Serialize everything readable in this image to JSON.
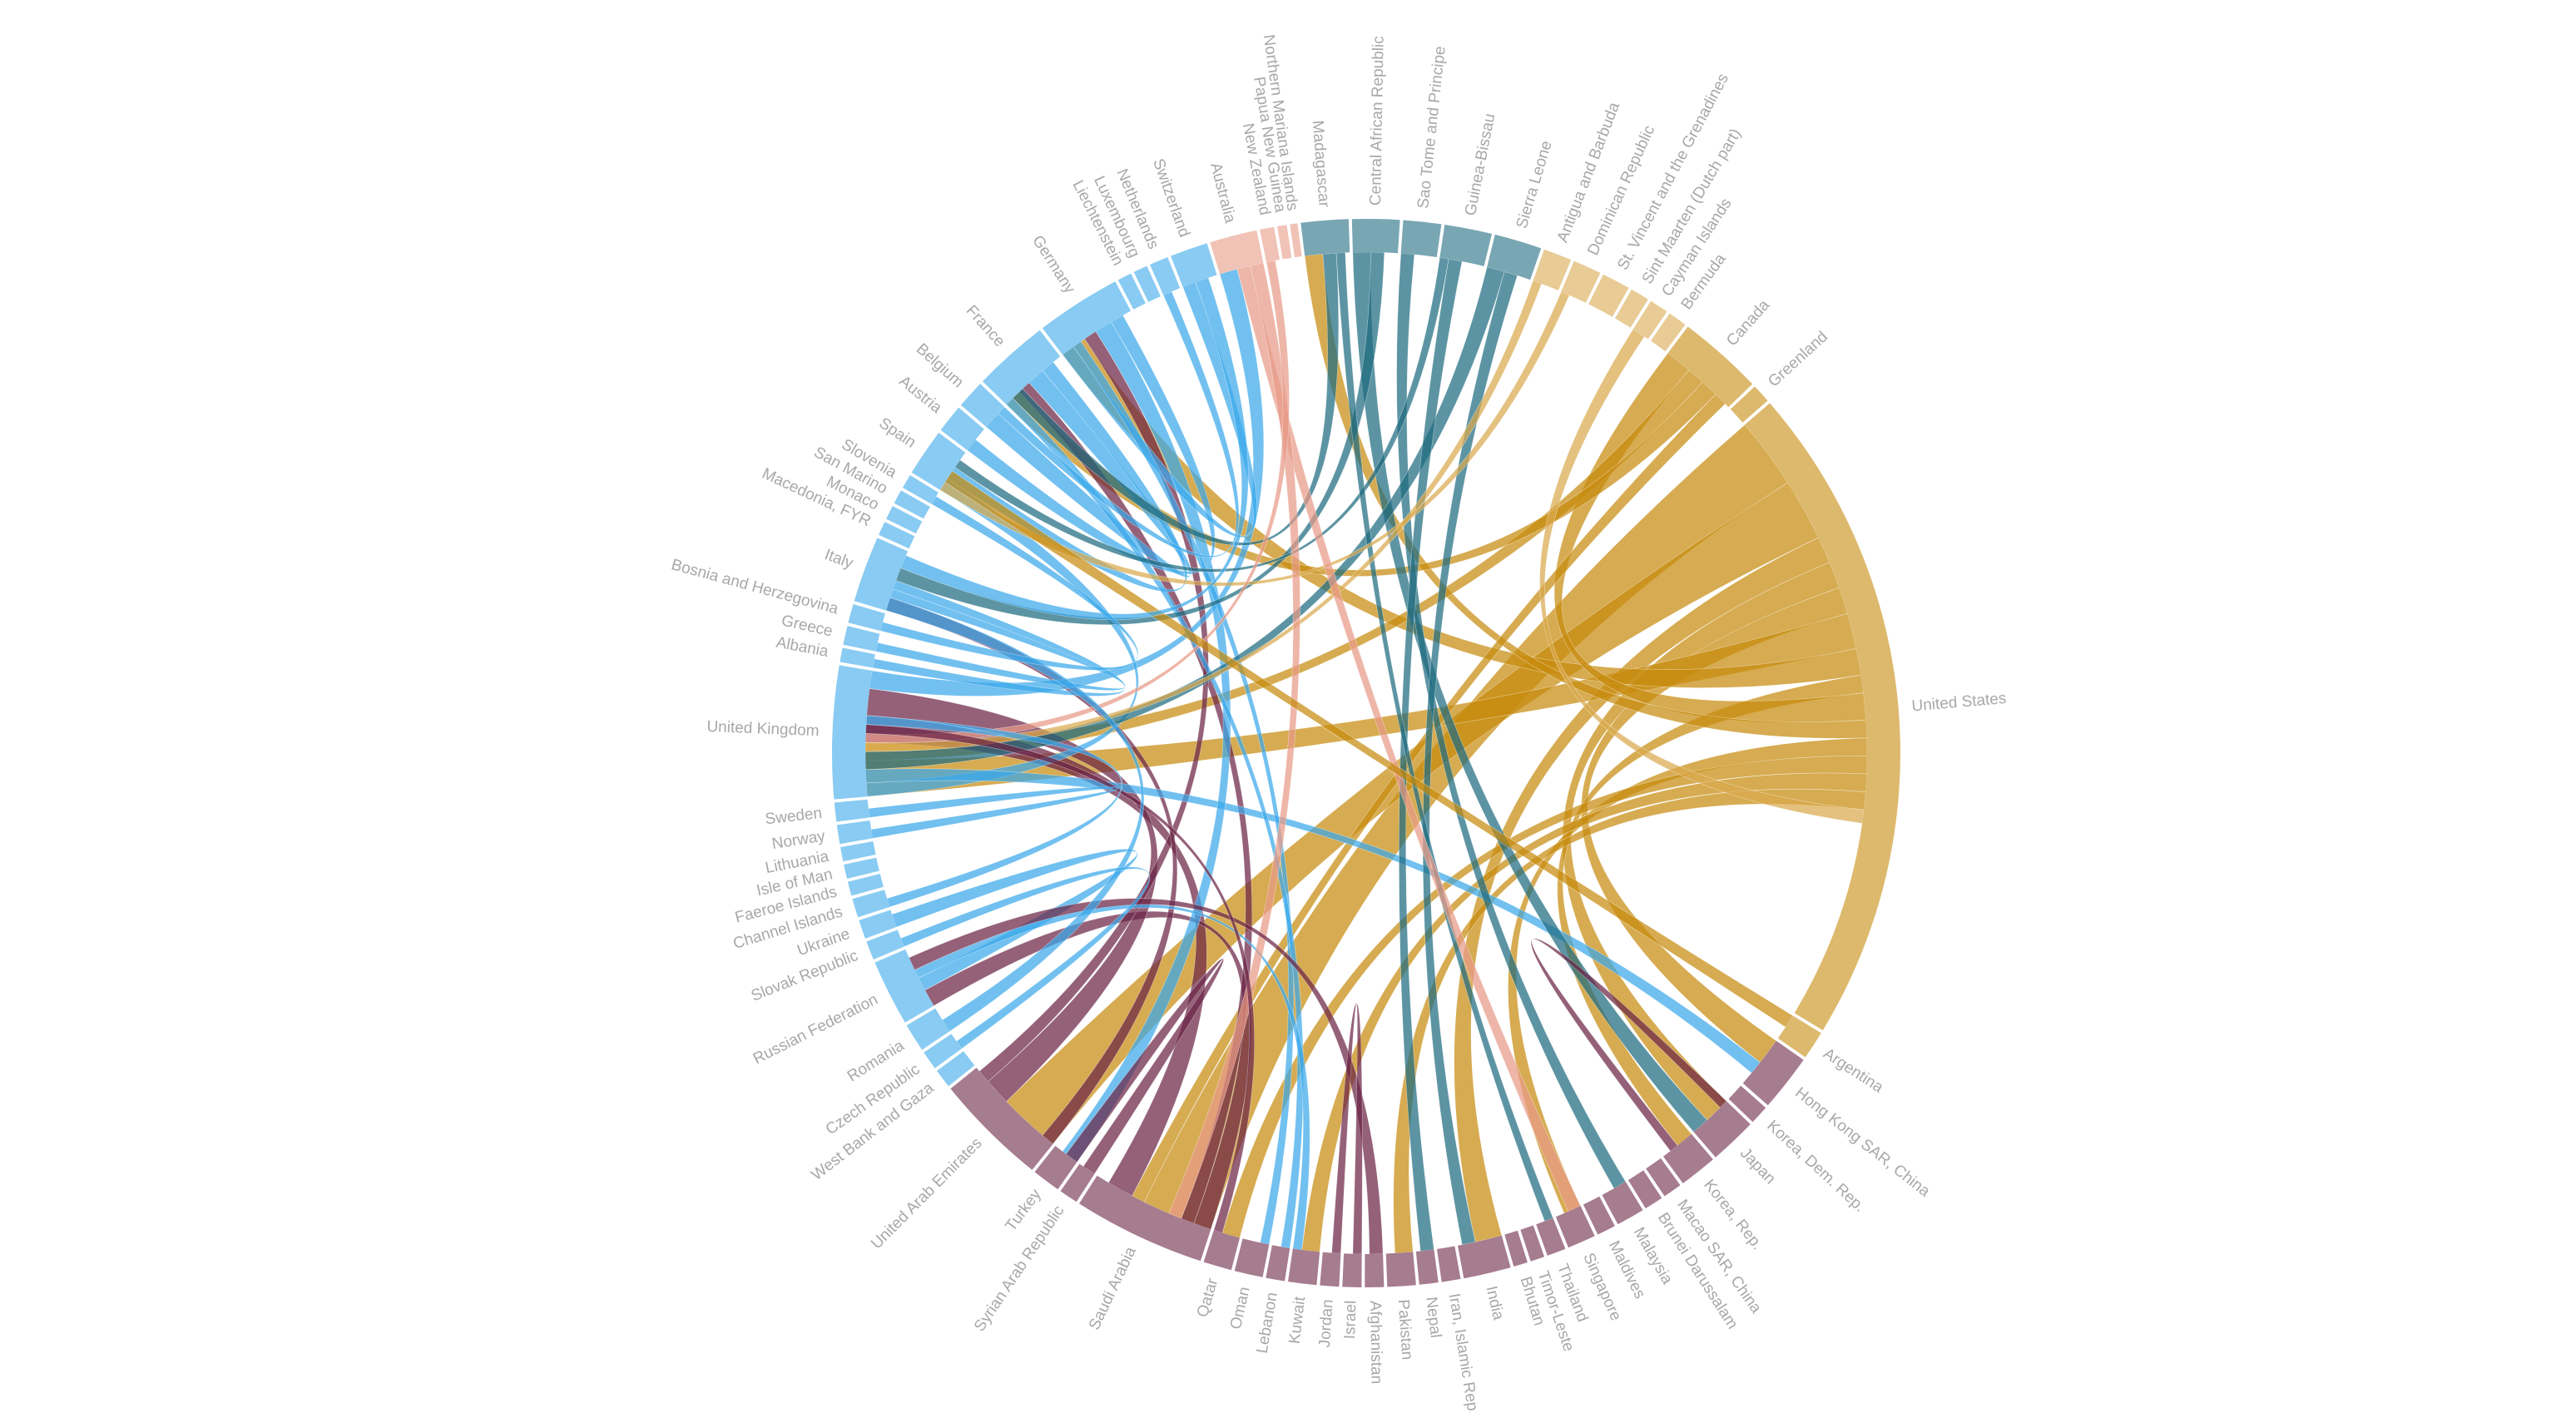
{
  "chart_data": {
    "type": "chord",
    "nodes": [
      {
        "name": "Australia",
        "value": 5,
        "color": "#e89a86"
      },
      {
        "name": "New Zealand",
        "value": 1.5,
        "color": "#e89a86"
      },
      {
        "name": "Papua New Guinea",
        "value": 1,
        "color": "#e89a86"
      },
      {
        "name": "Northern Mariana Islands",
        "value": 0.8,
        "color": "#e89a86"
      },
      {
        "name": "Madagascar",
        "value": 5,
        "color": "#1f6b80"
      },
      {
        "name": "Central African Republic",
        "value": 5,
        "color": "#1f6b80"
      },
      {
        "name": "Sao Tome and Principe",
        "value": 4,
        "color": "#1f6b80"
      },
      {
        "name": "Guinea-Bissau",
        "value": 5,
        "color": "#1f6b80"
      },
      {
        "name": "Sierra Leone",
        "value": 5,
        "color": "#1f6b80"
      },
      {
        "name": "Antigua and Barbuda",
        "value": 3,
        "color": "#d9a94e"
      },
      {
        "name": "Dominican Republic",
        "value": 3,
        "color": "#d9a94e"
      },
      {
        "name": "St. Vincent and the Grenadines",
        "value": 3,
        "color": "#d9a94e"
      },
      {
        "name": "Sint Maarten (Dutch part)",
        "value": 2,
        "color": "#d9a94e"
      },
      {
        "name": "Cayman Islands",
        "value": 2,
        "color": "#d9a94e"
      },
      {
        "name": "Bermuda",
        "value": 2,
        "color": "#d9a94e"
      },
      {
        "name": "Canada",
        "value": 9,
        "color": "#c68a0e"
      },
      {
        "name": "Greenland",
        "value": 2,
        "color": "#c68a0e"
      },
      {
        "name": "United States",
        "value": 70,
        "color": "#c68a0e"
      },
      {
        "name": "Argentina",
        "value": 3,
        "color": "#c68a0e"
      },
      {
        "name": "Hong Kong SAR, China",
        "value": 6,
        "color": "#6b2445"
      },
      {
        "name": "Korea, Dem. Rep.",
        "value": 2,
        "color": "#6b2445"
      },
      {
        "name": "Japan",
        "value": 5,
        "color": "#6b2445"
      },
      {
        "name": "Korea, Rep.",
        "value": 4,
        "color": "#6b2445"
      },
      {
        "name": "Macao SAR, China",
        "value": 2,
        "color": "#6b2445"
      },
      {
        "name": "Brunei Darussalam",
        "value": 2,
        "color": "#6b2445"
      },
      {
        "name": "Malaysia",
        "value": 3,
        "color": "#6b2445"
      },
      {
        "name": "Maldives",
        "value": 2,
        "color": "#6b2445"
      },
      {
        "name": "Singapore",
        "value": 3,
        "color": "#6b2445"
      },
      {
        "name": "Thailand",
        "value": 2,
        "color": "#6b2445"
      },
      {
        "name": "Timor-Leste",
        "value": 1.5,
        "color": "#6b2445"
      },
      {
        "name": "Bhutan",
        "value": 1.5,
        "color": "#6b2445"
      },
      {
        "name": "India",
        "value": 5,
        "color": "#6b2445"
      },
      {
        "name": "Iran, Islamic Rep.",
        "value": 2,
        "color": "#6b2445"
      },
      {
        "name": "Nepal",
        "value": 2,
        "color": "#6b2445"
      },
      {
        "name": "Pakistan",
        "value": 3,
        "color": "#6b2445"
      },
      {
        "name": "Afghanistan",
        "value": 2,
        "color": "#6b2445"
      },
      {
        "name": "Israel",
        "value": 2,
        "color": "#6b2445"
      },
      {
        "name": "Jordan",
        "value": 2,
        "color": "#6b2445"
      },
      {
        "name": "Kuwait",
        "value": 3,
        "color": "#6b2445"
      },
      {
        "name": "Lebanon",
        "value": 2,
        "color": "#6b2445"
      },
      {
        "name": "Oman",
        "value": 3,
        "color": "#6b2445"
      },
      {
        "name": "Qatar",
        "value": 3,
        "color": "#6b2445"
      },
      {
        "name": "Saudi Arabia",
        "value": 14,
        "color": "#6b2445"
      },
      {
        "name": "Syrian Arab Republic",
        "value": 2,
        "color": "#6b2445"
      },
      {
        "name": "Turkey",
        "value": 3,
        "color": "#6b2445"
      },
      {
        "name": "United Arab Emirates",
        "value": 12,
        "color": "#6b2445"
      },
      {
        "name": "West Bank and Gaza",
        "value": 2,
        "color": "#3aa8ea"
      },
      {
        "name": "Czech Republic",
        "value": 2,
        "color": "#3aa8ea"
      },
      {
        "name": "Romania",
        "value": 3,
        "color": "#3aa8ea"
      },
      {
        "name": "Russian Federation",
        "value": 7,
        "color": "#3aa8ea"
      },
      {
        "name": "Slovak Republic",
        "value": 2,
        "color": "#3aa8ea"
      },
      {
        "name": "Ukraine",
        "value": 2,
        "color": "#3aa8ea"
      },
      {
        "name": "Channel Islands",
        "value": 2,
        "color": "#3aa8ea"
      },
      {
        "name": "Faeroe Islands",
        "value": 1.5,
        "color": "#3aa8ea"
      },
      {
        "name": "Isle of Man",
        "value": 1.5,
        "color": "#3aa8ea"
      },
      {
        "name": "Lithuania",
        "value": 1.5,
        "color": "#3aa8ea"
      },
      {
        "name": "Norway",
        "value": 2,
        "color": "#3aa8ea"
      },
      {
        "name": "Sweden",
        "value": 2,
        "color": "#3aa8ea"
      },
      {
        "name": "United Kingdom",
        "value": 14,
        "color": "#3aa8ea"
      },
      {
        "name": "Albania",
        "value": 1.5,
        "color": "#3aa8ea"
      },
      {
        "name": "Greece",
        "value": 2,
        "color": "#3aa8ea"
      },
      {
        "name": "Bosnia and Herzegovina",
        "value": 2,
        "color": "#3aa8ea"
      },
      {
        "name": "Italy",
        "value": 7,
        "color": "#3aa8ea"
      },
      {
        "name": "Macedonia, FYR",
        "value": 1.5,
        "color": "#3aa8ea"
      },
      {
        "name": "Monaco",
        "value": 1.5,
        "color": "#3aa8ea"
      },
      {
        "name": "San Marino",
        "value": 1.5,
        "color": "#3aa8ea"
      },
      {
        "name": "Slovenia",
        "value": 1.5,
        "color": "#3aa8ea"
      },
      {
        "name": "Spain",
        "value": 5,
        "color": "#3aa8ea"
      },
      {
        "name": "Austria",
        "value": 3,
        "color": "#3aa8ea"
      },
      {
        "name": "Belgium",
        "value": 3,
        "color": "#3aa8ea"
      },
      {
        "name": "France",
        "value": 8,
        "color": "#3aa8ea"
      },
      {
        "name": "Germany",
        "value": 9,
        "color": "#3aa8ea"
      },
      {
        "name": "Liechtenstein",
        "value": 1.5,
        "color": "#3aa8ea"
      },
      {
        "name": "Luxembourg",
        "value": 1.5,
        "color": "#3aa8ea"
      },
      {
        "name": "Netherlands",
        "value": 2,
        "color": "#3aa8ea"
      },
      {
        "name": "Switzerland",
        "value": 4,
        "color": "#3aa8ea"
      }
    ],
    "chords": [
      [
        "United States",
        "Saudi Arabia",
        8
      ],
      [
        "United States",
        "United Arab Emirates",
        7
      ],
      [
        "United States",
        "India",
        3
      ],
      [
        "United States",
        "Japan",
        3
      ],
      [
        "United States",
        "Hong Kong SAR, China",
        3
      ],
      [
        "United States",
        "United Kingdom",
        4
      ],
      [
        "United States",
        "Germany",
        3
      ],
      [
        "United States",
        "Korea, Rep.",
        2
      ],
      [
        "United States",
        "Canada",
        3
      ],
      [
        "United States",
        "Madagascar",
        2
      ],
      [
        "United States",
        "Singapore",
        2
      ],
      [
        "United States",
        "Qatar",
        2
      ],
      [
        "United States",
        "Kuwait",
        2
      ],
      [
        "United States",
        "Pakistan",
        2
      ],
      [
        "Canada",
        "United Kingdom",
        2
      ],
      [
        "Canada",
        "France",
        2
      ],
      [
        "Canada",
        "Saudi Arabia",
        1.5
      ],
      [
        "Saudi Arabia",
        "United Kingdom",
        3
      ],
      [
        "Saudi Arabia",
        "Russian Federation",
        2
      ],
      [
        "Saudi Arabia",
        "France",
        1.5
      ],
      [
        "United Arab Emirates",
        "United Kingdom",
        3
      ],
      [
        "United Arab Emirates",
        "Germany",
        1.5
      ],
      [
        "United Arab Emirates",
        "Italy",
        1.5
      ],
      [
        "United Kingdom",
        "Australia",
        2
      ],
      [
        "United Kingdom",
        "Spain",
        1.5
      ],
      [
        "United Kingdom",
        "Hong Kong SAR, China",
        1.5
      ],
      [
        "Germany",
        "Turkey",
        2
      ],
      [
        "Germany",
        "Austria",
        1.5
      ],
      [
        "Germany",
        "Switzerland",
        1.5
      ],
      [
        "Germany",
        "Oman",
        1
      ],
      [
        "France",
        "Belgium",
        2
      ],
      [
        "France",
        "Spain",
        1.5
      ],
      [
        "France",
        "Lebanon",
        1
      ],
      [
        "Italy",
        "Greece",
        1
      ],
      [
        "Italy",
        "Albania",
        1
      ],
      [
        "Russian Federation",
        "Ukraine",
        1.5
      ],
      [
        "Russian Federation",
        "Kuwait",
        1
      ],
      [
        "Madagascar",
        "France",
        1.5
      ],
      [
        "Central African Republic",
        "Japan",
        2
      ],
      [
        "Central African Republic",
        "Italy",
        1.5
      ],
      [
        "Sao Tome and Principe",
        "Malaysia",
        1.5
      ],
      [
        "Guinea-Bissau",
        "Spain",
        1
      ],
      [
        "Sierra Leone",
        "United Kingdom",
        2
      ],
      [
        "Guinea-Bissau",
        "Nepal",
        1.5
      ],
      [
        "Sierra Leone",
        "India",
        1.5
      ],
      [
        "Madagascar",
        "Thailand",
        1
      ],
      [
        "Dominican Republic",
        "Spain",
        1
      ],
      [
        "Antigua and Barbuda",
        "United Kingdom",
        1
      ],
      [
        "Cayman Islands",
        "United States",
        1.5
      ],
      [
        "Australia",
        "Singapore",
        1.5
      ],
      [
        "Australia",
        "Saudi Arabia",
        1.5
      ],
      [
        "New Zealand",
        "United Kingdom",
        1
      ],
      [
        "Afghanistan",
        "Russian Federation",
        1.5
      ],
      [
        "Jordan",
        "Israel",
        1
      ],
      [
        "Syrian Arab Republic",
        "Turkey",
        1.5
      ],
      [
        "Qatar",
        "United Kingdom",
        1
      ],
      [
        "Korea, Rep.",
        "Japan",
        1
      ],
      [
        "Argentina",
        "Spain",
        1.5
      ],
      [
        "Switzerland",
        "Italy",
        1.5
      ],
      [
        "Netherlands",
        "Belgium",
        1
      ],
      [
        "Romania",
        "Italy",
        1.5
      ],
      [
        "Czech Republic",
        "Slovak Republic",
        1
      ],
      [
        "Norway",
        "Sweden",
        1
      ],
      [
        "Bosnia and Herzegovina",
        "Slovenia",
        1
      ],
      [
        "Channel Islands",
        "United Kingdom",
        1
      ]
    ]
  }
}
